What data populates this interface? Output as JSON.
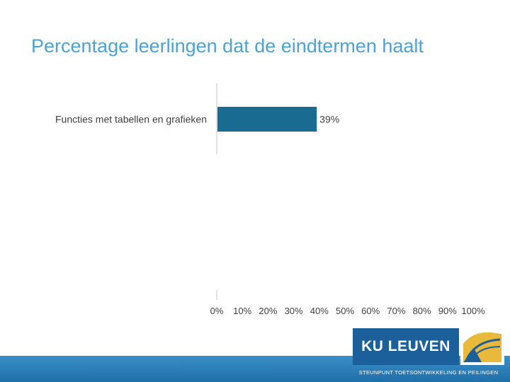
{
  "title": "Percentage leerlingen dat de eindtermen haalt",
  "colors": {
    "title": "#4aa3d4",
    "bar": "#1a6b92",
    "axis": "#d9d9d9",
    "footer": "#2a80bd",
    "logo": "#1b5f9b"
  },
  "chart_data": {
    "type": "bar",
    "orientation": "horizontal",
    "categories": [
      "Functies met tabellen en grafieken"
    ],
    "values": [
      39
    ],
    "data_labels": [
      "39%"
    ],
    "xlim": [
      0,
      100
    ],
    "xticks": [
      "0%",
      "10%",
      "20%",
      "30%",
      "40%",
      "50%",
      "60%",
      "70%",
      "80%",
      "90%",
      "100%"
    ],
    "grid": false
  },
  "footer": {
    "logo_text": "KU LEUVEN",
    "tagline": "STEUNPUNT TOETSONTWIKKELING EN PEILINGEN"
  }
}
